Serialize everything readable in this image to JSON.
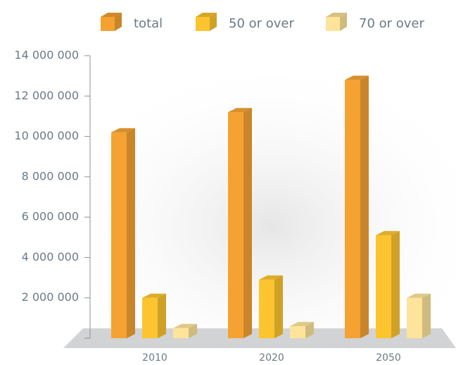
{
  "chart_data": {
    "type": "bar",
    "categories": [
      "2010",
      "2020",
      "2050"
    ],
    "series": [
      {
        "name": "total",
        "color": "#f5a233",
        "values": [
          10200000,
          11200000,
          12800000
        ]
      },
      {
        "name": "50 or over",
        "color": "#fcc42e",
        "values": [
          2000000,
          2900000,
          5100000
        ]
      },
      {
        "name": "70 or over",
        "color": "#fde49a",
        "values": [
          500000,
          600000,
          2000000
        ]
      }
    ],
    "ylim": [
      0,
      14000000
    ],
    "yticks": [
      {
        "value": 2000000,
        "label": "2 000 000"
      },
      {
        "value": 4000000,
        "label": "4 000 000"
      },
      {
        "value": 6000000,
        "label": "6 000 000"
      },
      {
        "value": 8000000,
        "label": "8 000 000"
      },
      {
        "value": 10000000,
        "label": "10 000 000"
      },
      {
        "value": 12000000,
        "label": "12 000 000"
      },
      {
        "value": 14000000,
        "label": "14 000 000"
      }
    ],
    "legend": "top"
  }
}
